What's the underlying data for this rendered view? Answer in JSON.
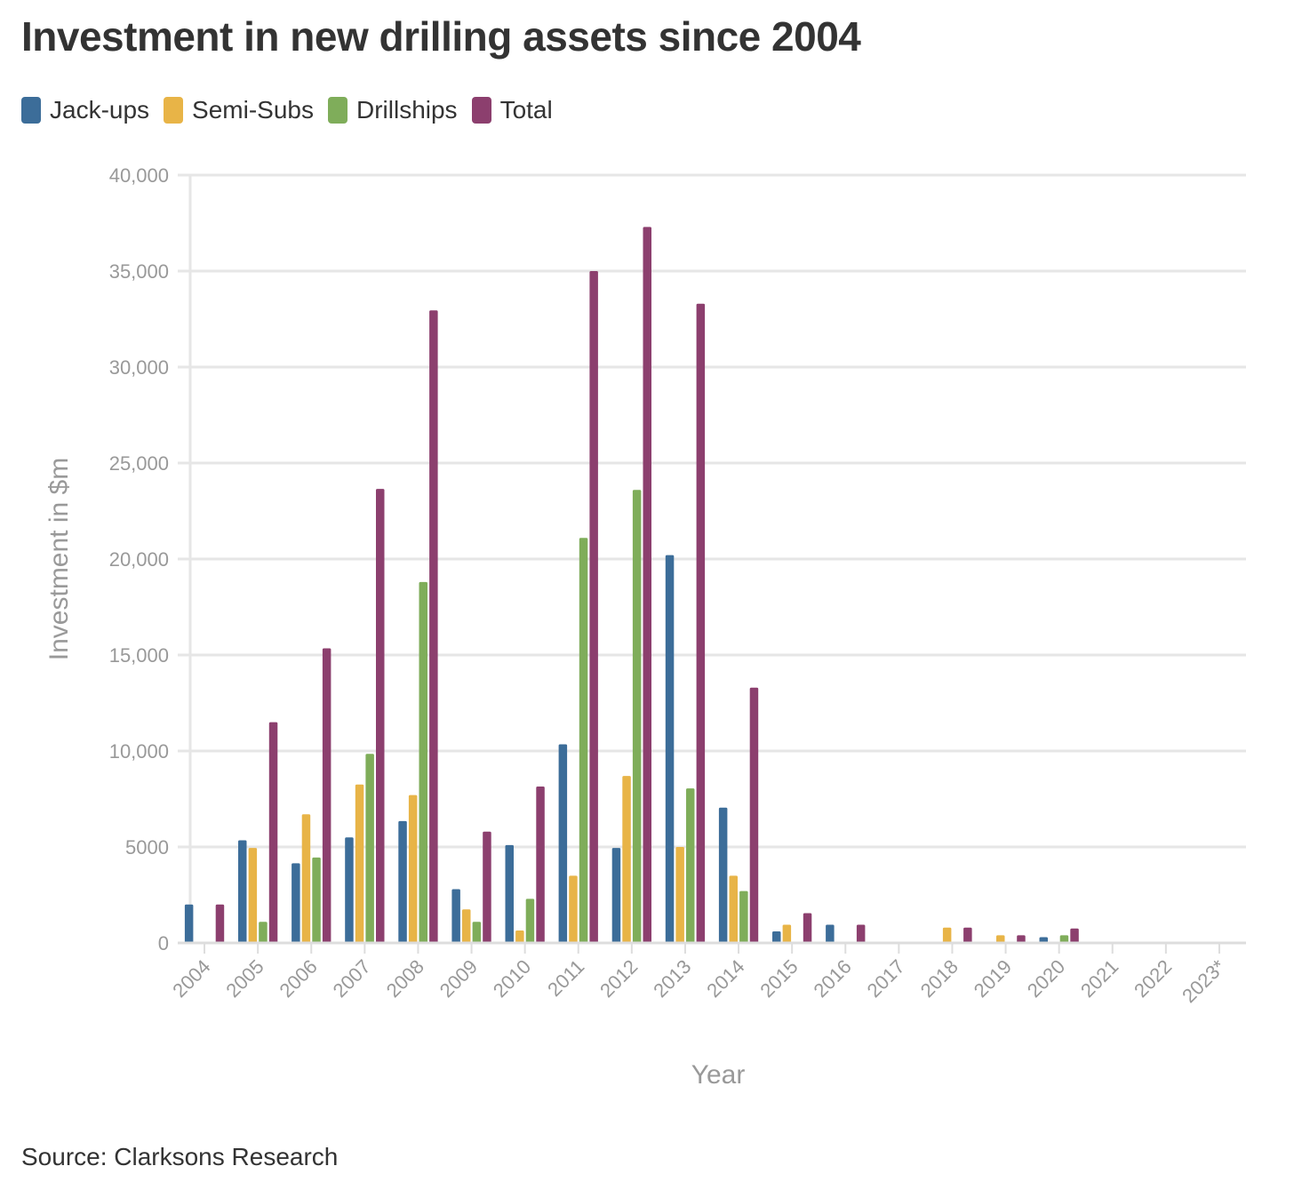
{
  "chart_data": {
    "type": "bar",
    "title": "Investment in new drilling assets since 2004",
    "xlabel": "Year",
    "ylabel": "Investment in $m",
    "source": "Source: Clarksons Research",
    "ylim": [
      0,
      40000
    ],
    "yticks": [
      0,
      5000,
      10000,
      15000,
      20000,
      25000,
      30000,
      35000,
      40000
    ],
    "ytick_labels": [
      "0",
      "5000",
      "10,000",
      "15,000",
      "20,000",
      "25,000",
      "30,000",
      "35,000",
      "40,000"
    ],
    "grid": true,
    "legend_position": "top-left",
    "categories": [
      "2004",
      "2005",
      "2006",
      "2007",
      "2008",
      "2009",
      "2010",
      "2011",
      "2012",
      "2013",
      "2014",
      "2015",
      "2016",
      "2017",
      "2018",
      "2019",
      "2020",
      "2021",
      "2022",
      "2023*"
    ],
    "series": [
      {
        "name": "Jack-ups",
        "color": "#3c6d99",
        "values": [
          2000,
          5350,
          4150,
          5500,
          6350,
          2800,
          5100,
          10350,
          4950,
          20200,
          7050,
          600,
          950,
          0,
          0,
          0,
          300,
          0,
          0,
          0
        ]
      },
      {
        "name": "Semi-Subs",
        "color": "#e8b447",
        "values": [
          0,
          4950,
          6700,
          8250,
          7700,
          1750,
          650,
          3500,
          8700,
          5000,
          3500,
          950,
          0,
          0,
          800,
          400,
          0,
          0,
          0,
          0
        ]
      },
      {
        "name": "Drillships",
        "color": "#7fad5a",
        "values": [
          0,
          1100,
          4450,
          9850,
          18800,
          1100,
          2300,
          21100,
          23600,
          8050,
          2700,
          0,
          0,
          0,
          0,
          0,
          400,
          0,
          0,
          0
        ]
      },
      {
        "name": "Total",
        "color": "#8c3f6e",
        "values": [
          2000,
          11500,
          15350,
          23650,
          32950,
          5800,
          8150,
          35000,
          37300,
          33300,
          13300,
          1550,
          950,
          0,
          800,
          400,
          750,
          0,
          0,
          0
        ]
      }
    ]
  }
}
